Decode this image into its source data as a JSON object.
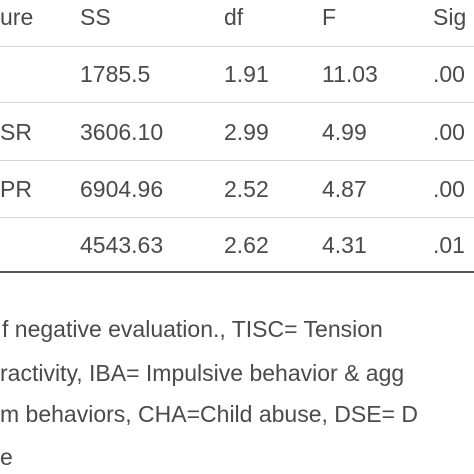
{
  "table": {
    "header": [
      "ure",
      "SS",
      "df",
      "F",
      "Sig"
    ],
    "rows": [
      [
        null,
        "1785.5",
        "1.91",
        "11.03",
        ".00"
      ],
      [
        "SR",
        "3606.10",
        "2.99",
        "4.99",
        ".00"
      ],
      [
        "PR",
        "6904.96",
        "2.52",
        "4.87",
        ".00"
      ],
      [
        null,
        "4543.63",
        "2.62",
        "4.31",
        ".01"
      ]
    ]
  },
  "notes": [
    "f negative evaluation., TISC= Tension",
    "ractivity, IBA= Impulsive behavior & agg",
    "m behaviors, CHA=Child abuse, DSE= D",
    "e"
  ]
}
